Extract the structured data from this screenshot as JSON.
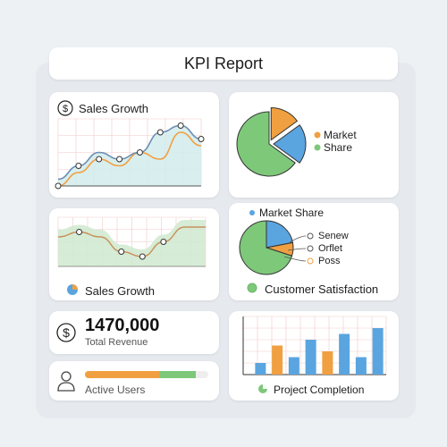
{
  "header": {
    "title": "KPI Report"
  },
  "sales_growth_top": {
    "title": "Sales Growth"
  },
  "market_share_top": {
    "legend": [
      "Market",
      "Share"
    ]
  },
  "sales_growth_bottom": {
    "title": "Sales Growth"
  },
  "market_share_bottom": {
    "title": "Market Share",
    "legend": [
      "Senew",
      "Orflet",
      "Poss"
    ],
    "footer": "Customer Satisfaction"
  },
  "revenue": {
    "value": "1470,000",
    "label": "Total Revenue"
  },
  "users": {
    "label": "Active Users",
    "progress": [
      0.6,
      0.3
    ]
  },
  "project": {
    "title": "Project Completion"
  },
  "icons": {
    "dollar": "dollar-icon",
    "user": "user-icon",
    "pie_small": "pie-small-icon",
    "pie_green": "pie-green-icon",
    "dot_blue": "dot-blue-icon",
    "dot_green": "dot-green-icon"
  },
  "colors": {
    "orange": "#f0a040",
    "blue": "#5aa5e0",
    "green": "#7ec87a",
    "green_light": "#cfe9cf",
    "teal_light": "#d5ecec",
    "grid": "#f2c9c9"
  },
  "chart_data": [
    {
      "type": "line",
      "title": "Sales Growth",
      "series": [
        {
          "values": [
            1,
            3,
            5,
            4,
            5,
            8,
            9,
            7
          ]
        },
        {
          "values": [
            0,
            2,
            4,
            3,
            5,
            4,
            8,
            6
          ]
        }
      ]
    },
    {
      "type": "pie",
      "values": [
        15,
        20,
        65
      ],
      "colors": [
        "#f0a040",
        "#5aa5e0",
        "#7ec87a"
      ]
    },
    {
      "type": "line",
      "title": "Sales Growth",
      "series": [
        {
          "values": [
            6,
            7,
            6,
            3,
            2,
            5,
            8,
            8
          ]
        }
      ]
    },
    {
      "type": "pie",
      "values": [
        22,
        8,
        70
      ],
      "colors": [
        "#5aa5e0",
        "#f0a040",
        "#7ec87a"
      ]
    },
    {
      "type": "bar",
      "title": "Project Completion",
      "series": [
        {
          "values": [
            2,
            5,
            3,
            6,
            4,
            7,
            3,
            8
          ]
        }
      ],
      "colors": [
        "#5aa5e0",
        "#f0a040",
        "#5aa5e0",
        "#5aa5e0",
        "#f0a040",
        "#5aa5e0",
        "#5aa5e0",
        "#5aa5e0"
      ]
    }
  ]
}
